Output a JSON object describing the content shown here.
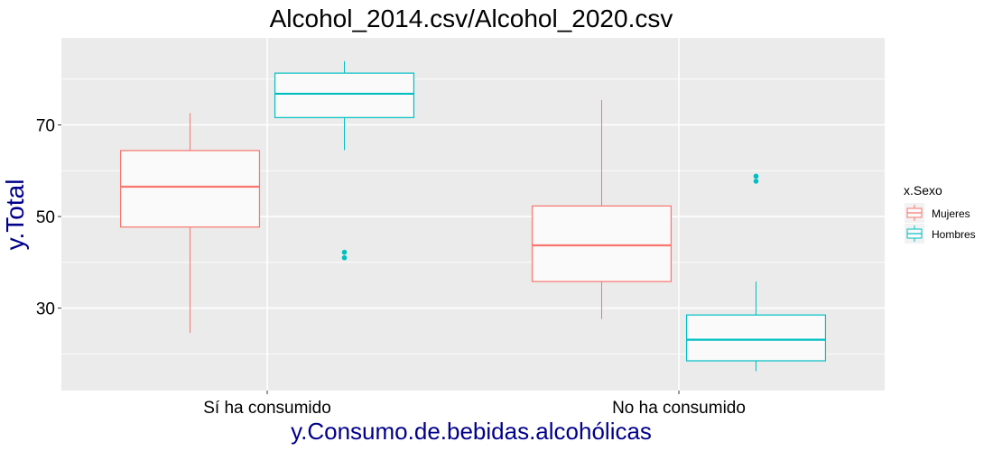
{
  "chart_data": {
    "type": "boxplot",
    "title": "Alcohol_2014.csv/Alcohol_2020.csv",
    "xlabel": "y.Consumo.de.bebidas.alcohólicas",
    "ylabel": "y.Total",
    "ylim": [
      12,
      89
    ],
    "yticks": [
      30,
      50,
      70
    ],
    "grid": true,
    "categories": [
      "Sí ha consumido",
      "No ha consumido"
    ],
    "legend": {
      "title": "x.Sexo",
      "position": "right"
    },
    "colors": {
      "axis_label": "#00008b",
      "panel": "#ebebeb",
      "grid": "#ffffff",
      "box_fill": "#fafafa"
    },
    "series": [
      {
        "name": "Mujeres",
        "color": "#f8766d",
        "boxes": [
          {
            "category": "Sí ha consumido",
            "min": 24.6,
            "q1": 47.7,
            "median": 56.5,
            "q3": 64.4,
            "max": 72.6,
            "outliers": []
          },
          {
            "category": "No ha consumido",
            "min": 27.6,
            "q1": 35.8,
            "median": 43.7,
            "q3": 52.3,
            "max": 75.4,
            "outliers": []
          }
        ]
      },
      {
        "name": "Hombres",
        "color": "#00bfc4",
        "boxes": [
          {
            "category": "Sí ha consumido",
            "min": 64.5,
            "q1": 71.6,
            "median": 76.8,
            "q3": 81.3,
            "max": 83.9,
            "outliers": [
              42.2,
              41.0
            ]
          },
          {
            "category": "No ha consumido",
            "min": 16.2,
            "q1": 18.5,
            "median": 23.1,
            "q3": 28.5,
            "max": 35.8,
            "outliers": [
              58.8,
              57.7
            ]
          }
        ]
      }
    ]
  }
}
